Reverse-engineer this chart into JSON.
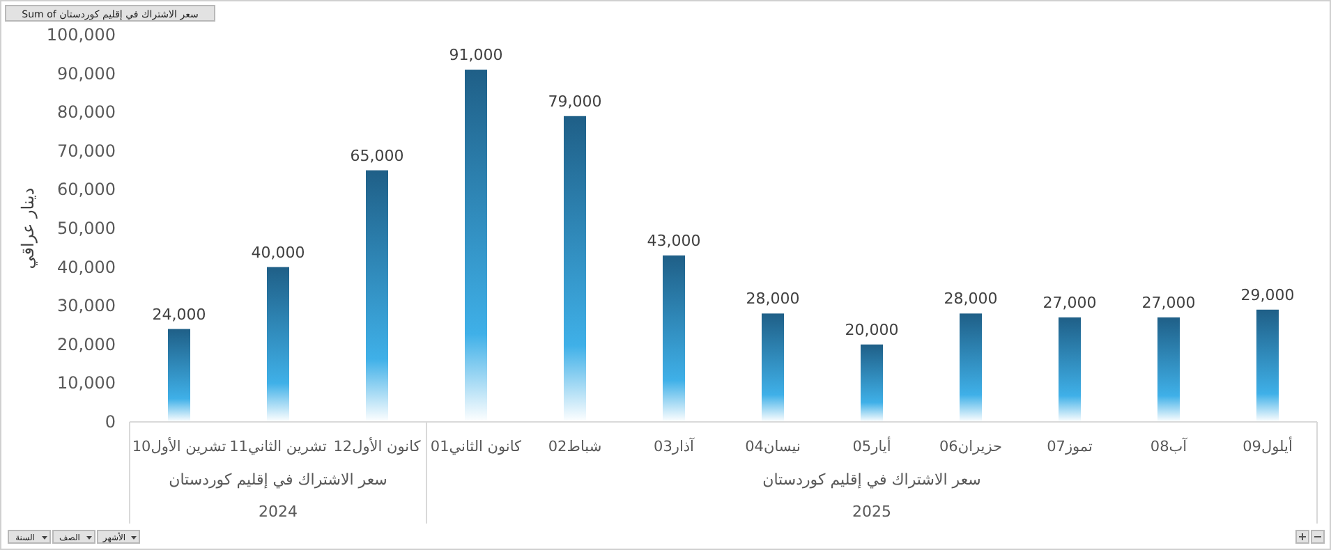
{
  "chart_data": {
    "type": "bar",
    "ylabel": "دينار عراقي",
    "categories": [
      "10تشرين الأول",
      "11تشرين الثاني",
      "12كانون الأول",
      "01كانون الثاني",
      "02شباط",
      "03آذار",
      "04نيسان",
      "05أيار",
      "06حزيران",
      "07تموز",
      "08آب",
      "09أيلول"
    ],
    "series": [
      {
        "color": "#1f5f87",
        "values": [
          24000,
          40000,
          65000,
          91000,
          79000,
          43000,
          28000,
          20000,
          28000,
          27000,
          27000,
          29000
        ],
        "value_labels": [
          "24,000",
          "40,000",
          "65,000",
          "91,000",
          "79,000",
          "43,000",
          "28,000",
          "20,000",
          "28,000",
          "27,000",
          "27,000",
          "29,000"
        ]
      }
    ],
    "ylim": [
      0,
      100000
    ],
    "yticks": [
      {
        "value": 0,
        "label": "0"
      },
      {
        "value": 10000,
        "label": "10,000"
      },
      {
        "value": 20000,
        "label": "20,000"
      },
      {
        "value": 30000,
        "label": "30,000"
      },
      {
        "value": 40000,
        "label": "40,000"
      },
      {
        "value": 50000,
        "label": "50,000"
      },
      {
        "value": 60000,
        "label": "60,000"
      },
      {
        "value": 70000,
        "label": "70,000"
      },
      {
        "value": 80000,
        "label": "80,000"
      },
      {
        "value": 90000,
        "label": "90,000"
      },
      {
        "value": 100000,
        "label": "100,000"
      }
    ],
    "grid": false,
    "annotations": [
      "Sum of سعر الاشتراك في إقليم كوردستان",
      "سعر الاشتراك في إقليم كوردستان",
      "2024",
      "سعر الاشتراك في إقليم كوردستان",
      "2025",
      "السنة",
      "الصف",
      "الأشهر"
    ]
  }
}
